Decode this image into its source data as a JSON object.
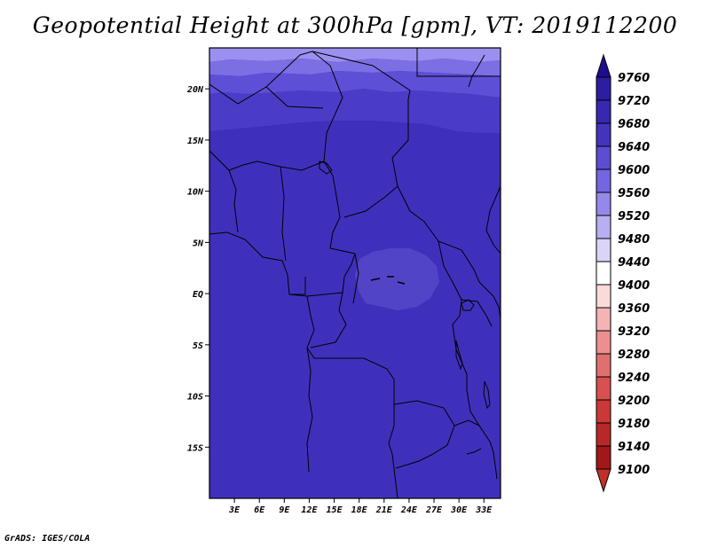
{
  "title": "Geopotential Height at 300hPa [gpm], VT: 2019112200",
  "credit": "GrADS: IGES/COLA",
  "map": {
    "lon_range": [
      0,
      35
    ],
    "lat_range": [
      -20,
      24
    ],
    "x_ticks": [
      {
        "lon": 3,
        "label": "3E"
      },
      {
        "lon": 6,
        "label": "6E"
      },
      {
        "lon": 9,
        "label": "9E"
      },
      {
        "lon": 12,
        "label": "12E"
      },
      {
        "lon": 15,
        "label": "15E"
      },
      {
        "lon": 18,
        "label": "18E"
      },
      {
        "lon": 21,
        "label": "21E"
      },
      {
        "lon": 24,
        "label": "24E"
      },
      {
        "lon": 27,
        "label": "27E"
      },
      {
        "lon": 30,
        "label": "30E"
      },
      {
        "lon": 33,
        "label": "33E"
      }
    ],
    "y_ticks": [
      {
        "lat": 20,
        "label": "20N"
      },
      {
        "lat": 15,
        "label": "15N"
      },
      {
        "lat": 10,
        "label": "10N"
      },
      {
        "lat": 5,
        "label": "5N"
      },
      {
        "lat": 0,
        "label": "EQ"
      },
      {
        "lat": -5,
        "label": "5S"
      },
      {
        "lat": -10,
        "label": "10S"
      },
      {
        "lat": -15,
        "label": "15S"
      }
    ]
  },
  "colorbar": {
    "levels": [
      {
        "label": "9760",
        "color": "#1e0d8f"
      },
      {
        "label": "9720",
        "color": "#2b1ea0"
      },
      {
        "label": "9680",
        "color": "#3628b0"
      },
      {
        "label": "9640",
        "color": "#4433bb"
      },
      {
        "label": "9600",
        "color": "#5c4dd2"
      },
      {
        "label": "9560",
        "color": "#7466e0"
      },
      {
        "label": "9520",
        "color": "#9488ea"
      },
      {
        "label": "9480",
        "color": "#b8aff2"
      },
      {
        "label": "9440",
        "color": "#d9d4f8"
      },
      {
        "label": "9400",
        "color": "#ffffff"
      },
      {
        "label": "9360",
        "color": "#fbdada"
      },
      {
        "label": "9320",
        "color": "#f4b4b4"
      },
      {
        "label": "9280",
        "color": "#eb9090"
      },
      {
        "label": "9240",
        "color": "#e07070"
      },
      {
        "label": "9200",
        "color": "#d85050"
      },
      {
        "label": "9180",
        "color": "#cc3838"
      },
      {
        "label": "9140",
        "color": "#b82828"
      },
      {
        "label": "9100",
        "color": "#a01818"
      }
    ],
    "bottom_color": "#c0302a"
  },
  "bands": [
    {
      "color": "#9b8ff0"
    },
    {
      "color": "#7c6fe3"
    },
    {
      "color": "#5d4fd6"
    },
    {
      "color": "#4a3cc6"
    },
    {
      "color": "#3f30bc"
    },
    {
      "color": "#5244c7"
    }
  ]
}
